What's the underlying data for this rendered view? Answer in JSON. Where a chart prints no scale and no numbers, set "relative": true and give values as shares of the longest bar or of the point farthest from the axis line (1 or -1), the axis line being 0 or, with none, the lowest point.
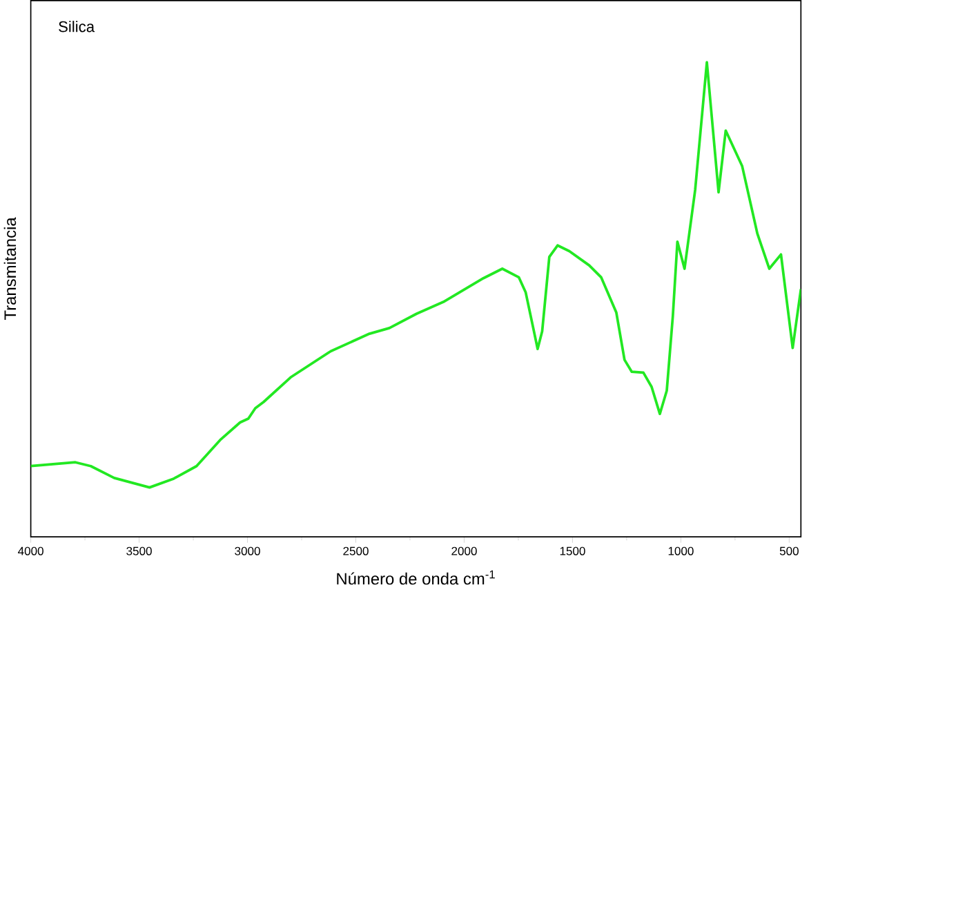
{
  "chart_data": {
    "type": "line",
    "annotations": [
      "Silica"
    ],
    "xlabel": "Número de onda cm$^{-1}$",
    "ylabel": "Transmitancia",
    "relative": true,
    "xlim": [
      4000,
      446
    ],
    "xticks": [
      4000,
      3500,
      3000,
      2500,
      2000,
      1500,
      1000,
      500
    ],
    "x": [
      4000,
      3794,
      3723,
      3615,
      3452,
      3343,
      3235,
      3126,
      3034,
      2996,
      2964,
      2926,
      2801,
      2616,
      2437,
      2345,
      2220,
      2096,
      1911,
      1824,
      1748,
      1716,
      1678,
      1661,
      1640,
      1607,
      1569,
      1515,
      1423,
      1368,
      1298,
      1260,
      1227,
      1173,
      1135,
      1097,
      1065,
      1037,
      1016,
      983,
      934,
      880,
      826,
      793,
      717,
      647,
      592,
      538,
      484,
      446
    ],
    "series": [
      {
        "color": "#22e822",
        "values": [
          0.149,
          0.157,
          0.149,
          0.124,
          0.104,
          0.122,
          0.149,
          0.204,
          0.241,
          0.249,
          0.271,
          0.284,
          0.336,
          0.391,
          0.428,
          0.44,
          0.47,
          0.495,
          0.545,
          0.565,
          0.547,
          0.515,
          0.433,
          0.396,
          0.433,
          0.59,
          0.614,
          0.602,
          0.572,
          0.547,
          0.473,
          0.373,
          0.348,
          0.346,
          0.316,
          0.259,
          0.308,
          0.465,
          0.622,
          0.565,
          0.731,
          1.0,
          0.726,
          0.856,
          0.781,
          0.639,
          0.565,
          0.595,
          0.398,
          0.522
        ]
      }
    ]
  }
}
